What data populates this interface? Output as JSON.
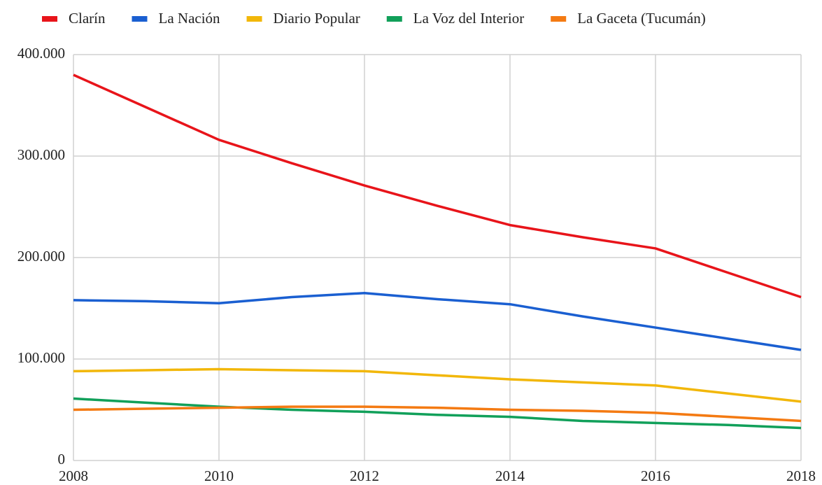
{
  "chart_data": {
    "type": "line",
    "x": [
      2008,
      2009,
      2010,
      2011,
      2012,
      2013,
      2014,
      2015,
      2016,
      2017,
      2018
    ],
    "series": [
      {
        "name": "Clarín",
        "color": "#e8141a",
        "values": [
          380000,
          348000,
          316000,
          293000,
          271000,
          251000,
          232000,
          220000,
          209000,
          185000,
          161000
        ]
      },
      {
        "name": "La Nación",
        "color": "#1a5fd1",
        "values": [
          158000,
          157000,
          155000,
          161000,
          165000,
          159000,
          154000,
          142000,
          131000,
          120000,
          109000
        ]
      },
      {
        "name": "Diario Popular",
        "color": "#f2b70a",
        "values": [
          88000,
          89000,
          90000,
          89000,
          88000,
          84000,
          80000,
          77000,
          74000,
          66000,
          58000
        ]
      },
      {
        "name": "La Voz del Interior",
        "color": "#11a05a",
        "values": [
          61000,
          57000,
          53000,
          50000,
          48000,
          45000,
          43000,
          39000,
          37000,
          35000,
          32000
        ]
      },
      {
        "name": "La Gaceta (Tucumán)",
        "color": "#f47a12",
        "values": [
          50000,
          51000,
          52000,
          53000,
          53000,
          52000,
          50000,
          49000,
          47000,
          43000,
          39000
        ]
      }
    ],
    "xlim": [
      2008,
      2018
    ],
    "xticks": [
      2008,
      2010,
      2012,
      2014,
      2016,
      2018
    ],
    "ylim": [
      0,
      400000
    ],
    "yticks": [
      0,
      {
        "value": 100000,
        "label": "100.000"
      },
      {
        "value": 200000,
        "label": "200.000"
      },
      {
        "value": 300000,
        "label": "300.000"
      },
      {
        "value": 400000,
        "label": "400.000"
      }
    ],
    "grid": true,
    "legend": "top"
  }
}
